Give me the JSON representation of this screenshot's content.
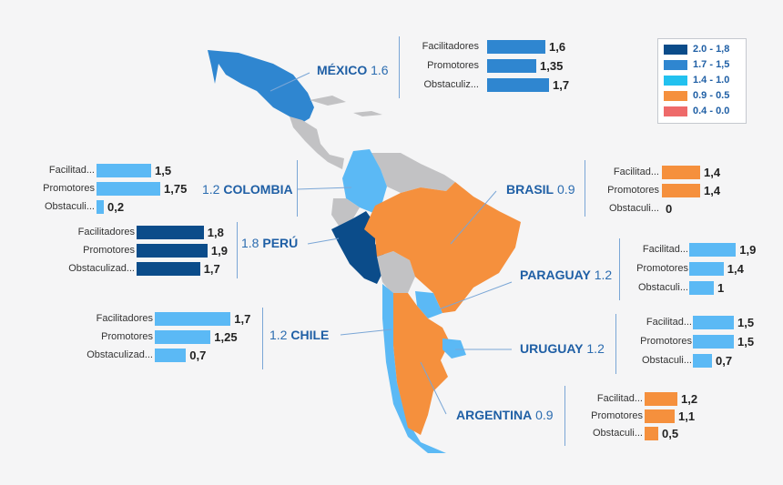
{
  "colors": {
    "mexico": "#2f86d0",
    "colombia": "#5bb9f5",
    "peru": "#0b4c8a",
    "chile": "#5bb9f5",
    "brasil": "#f5903d",
    "paraguay": "#5bb9f5",
    "uruguay": "#5bb9f5",
    "argentina": "#f5903d",
    "grey_country": "#c2c2c4",
    "name_text": "#1f5fa5"
  },
  "legend": [
    {
      "label": "2.0 - 1,8",
      "color": "#0b4c8a"
    },
    {
      "label": "1.7 - 1,5",
      "color": "#2f86d0"
    },
    {
      "label": "1.4 - 1.0",
      "color": "#22c1ef"
    },
    {
      "label": "0.9 - 0.5",
      "color": "#f5903d"
    },
    {
      "label": "0.4 - 0.0",
      "color": "#ee6a6a"
    }
  ],
  "countries": {
    "mexico": {
      "name": "MÉXICO",
      "score": "1.6",
      "bars": [
        {
          "label": "Facilitadores",
          "value": 1.6,
          "value_label": "1,6"
        },
        {
          "label": "Promotores",
          "value": 1.35,
          "value_label": "1,35"
        },
        {
          "label": "Obstaculiz...",
          "value": 1.7,
          "value_label": "1,7"
        }
      ]
    },
    "colombia": {
      "name": "COLOMBIA",
      "score": "1.2",
      "bars": [
        {
          "label": "Facilitad...",
          "value": 1.5,
          "value_label": "1,5"
        },
        {
          "label": "Promotores",
          "value": 1.75,
          "value_label": "1,75"
        },
        {
          "label": "Obstaculi...",
          "value": 0.2,
          "value_label": "0,2"
        }
      ]
    },
    "peru": {
      "name": "PERÚ",
      "score": "1.8",
      "bars": [
        {
          "label": "Facilitadores",
          "value": 1.8,
          "value_label": "1,8"
        },
        {
          "label": "Promotores",
          "value": 1.9,
          "value_label": "1,9"
        },
        {
          "label": "Obstaculizad...",
          "value": 1.7,
          "value_label": "1,7"
        }
      ]
    },
    "chile": {
      "name": "CHILE",
      "score": "1.2",
      "bars": [
        {
          "label": "Facilitadores",
          "value": 1.7,
          "value_label": "1,7"
        },
        {
          "label": "Promotores",
          "value": 1.25,
          "value_label": "1,25"
        },
        {
          "label": "Obstaculizad...",
          "value": 0.7,
          "value_label": "0,7"
        }
      ]
    },
    "brasil": {
      "name": "BRASIL",
      "score": "0.9",
      "bars": [
        {
          "label": "Facilitad...",
          "value": 1.4,
          "value_label": "1,4"
        },
        {
          "label": "Promotores",
          "value": 1.4,
          "value_label": "1,4"
        },
        {
          "label": "Obstaculi...",
          "value": 0,
          "value_label": "0"
        }
      ]
    },
    "paraguay": {
      "name": "PARAGUAY",
      "score": "1.2",
      "bars": [
        {
          "label": "Facilitad...",
          "value": 1.9,
          "value_label": "1,9"
        },
        {
          "label": "Promotores",
          "value": 1.4,
          "value_label": "1,4"
        },
        {
          "label": "Obstaculi...",
          "value": 1,
          "value_label": "1"
        }
      ]
    },
    "uruguay": {
      "name": "URUGUAY",
      "score": "1.2",
      "bars": [
        {
          "label": "Facilitad...",
          "value": 1.5,
          "value_label": "1,5"
        },
        {
          "label": "Promotores",
          "value": 1.5,
          "value_label": "1,5"
        },
        {
          "label": "Obstaculi...",
          "value": 0.7,
          "value_label": "0,7"
        }
      ]
    },
    "argentina": {
      "name": "ARGENTINA",
      "score": "0.9",
      "bars": [
        {
          "label": "Facilitad...",
          "value": 1.2,
          "value_label": "1,2"
        },
        {
          "label": "Promotores",
          "value": 1.1,
          "value_label": "1,1"
        },
        {
          "label": "Obstaculi...",
          "value": 0.5,
          "value_label": "0,5"
        }
      ]
    }
  }
}
